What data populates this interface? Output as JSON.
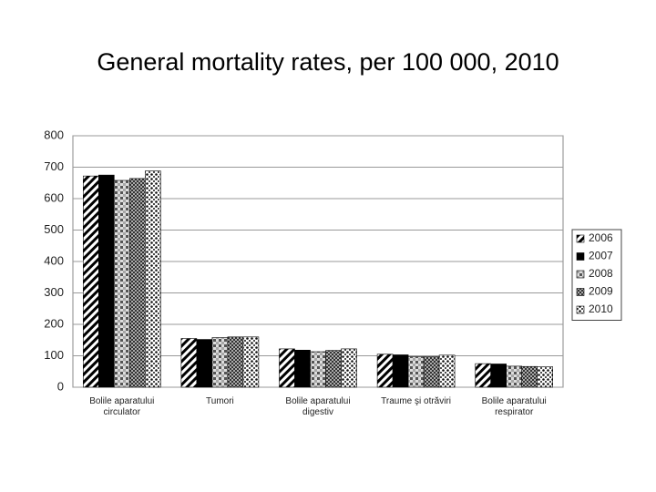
{
  "chart_data": {
    "type": "bar",
    "title": "General mortality rates, per 100 000, 2010",
    "categories": [
      "Bolile aparatului circulator",
      "Tumori",
      "Bolile aparatului digestiv",
      "Traume şi otrăviri",
      "Bolile aparatului respirator"
    ],
    "series": [
      {
        "name": "2006",
        "color": "#000000",
        "values": [
          672,
          155,
          122,
          105,
          75
        ]
      },
      {
        "name": "2007",
        "color": "#000000",
        "values": [
          675,
          152,
          118,
          103,
          74
        ]
      },
      {
        "name": "2008",
        "color": "#555555",
        "values": [
          658,
          158,
          113,
          97,
          67
        ]
      },
      {
        "name": "2009",
        "color": "#333333",
        "values": [
          664,
          160,
          117,
          97,
          66
        ]
      },
      {
        "name": "2010",
        "color": "#111111",
        "values": [
          688,
          160,
          122,
          102,
          65
        ]
      }
    ],
    "ylim": [
      0,
      800
    ],
    "yticks": [
      0,
      100,
      200,
      300,
      400,
      500,
      600,
      700,
      800
    ],
    "grid": true,
    "legend": "right"
  }
}
